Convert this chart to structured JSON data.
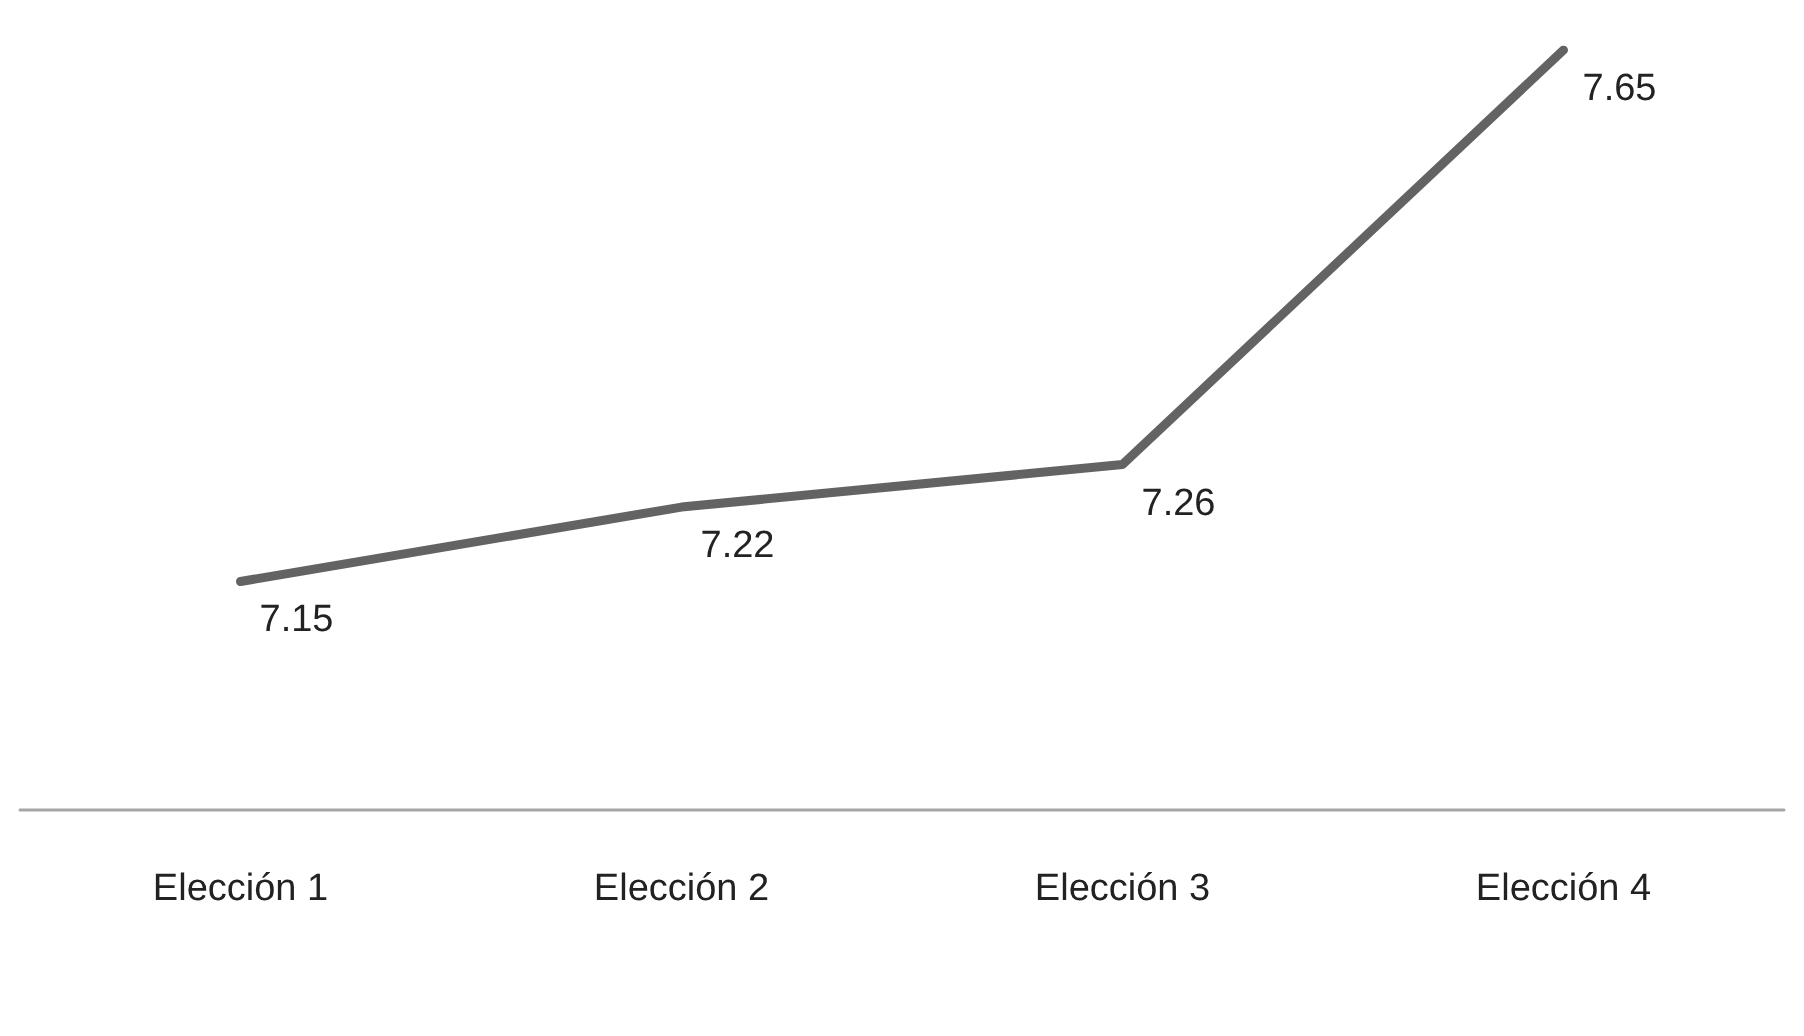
{
  "chart_data": {
    "type": "line",
    "categories": [
      "Elección 1",
      "Elección 2",
      "Elección 3",
      "Elección 4"
    ],
    "series": [
      {
        "color": "#636363",
        "values": [
          7.15,
          7.22,
          7.26,
          7.65
        ]
      }
    ],
    "data_labels": true,
    "marker": "none",
    "line_style": "solid"
  }
}
